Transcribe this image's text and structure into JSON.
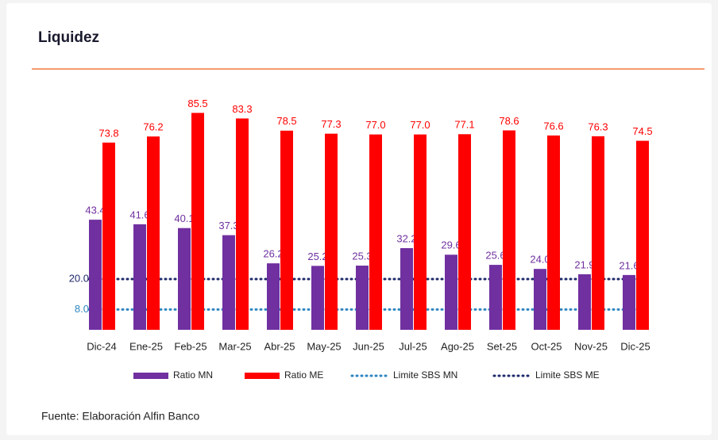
{
  "title": "Liquidez",
  "source": "Fuente: Elaboración Alfin Banco",
  "chart_data": {
    "type": "bar",
    "categories": [
      "Dic-24",
      "Ene-25",
      "Feb-25",
      "Mar-25",
      "Abr-25",
      "May-25",
      "Jun-25",
      "Jul-25",
      "Ago-25",
      "Set-25",
      "Oct-25",
      "Nov-25",
      "Dic-25"
    ],
    "series": [
      {
        "name": "Ratio MN",
        "color": "#7030a0",
        "values": [
          43.4,
          41.6,
          40.1,
          37.3,
          26.2,
          25.2,
          25.3,
          32.2,
          29.6,
          25.6,
          24.0,
          21.9,
          21.6
        ],
        "value_labels": [
          "43.4",
          "41.6",
          "40.1",
          "37.3",
          "26.2",
          "25.2",
          "25.3",
          "32.2",
          "29.6",
          "25.6",
          "24.0",
          "21.9",
          "21.6"
        ]
      },
      {
        "name": "Ratio ME",
        "color": "#ff0000",
        "values": [
          73.8,
          76.2,
          85.5,
          83.3,
          78.5,
          77.3,
          77.0,
          77.0,
          77.1,
          78.6,
          76.6,
          76.3,
          74.5
        ],
        "value_labels": [
          "73.8",
          "76.2",
          "85.5",
          "83.3",
          "78.5",
          "77.3",
          "77.0",
          "77.0",
          "77.1",
          "78.6",
          "76.6",
          "76.3",
          "74.5"
        ]
      }
    ],
    "reference_lines": [
      {
        "name": "Limite SBS MN",
        "value": 8,
        "label": "8.0",
        "color": "#2e86c1"
      },
      {
        "name": "Limite SBS ME",
        "value": 20,
        "label": "20.0",
        "color": "#1f2a6b"
      }
    ],
    "ylim": [
      0,
      90
    ]
  }
}
